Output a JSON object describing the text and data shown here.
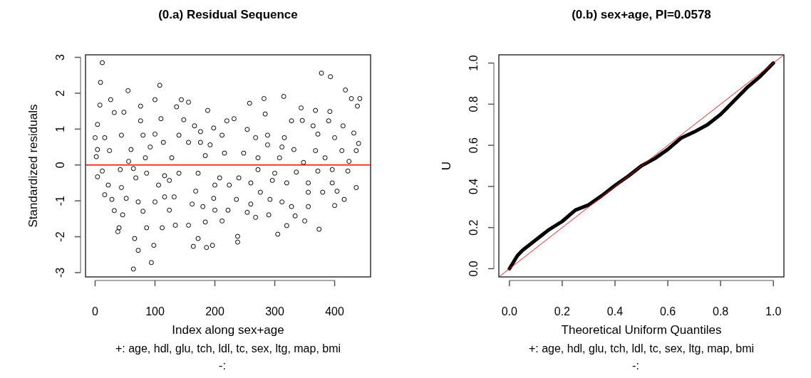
{
  "chart_data": [
    {
      "type": "scatter",
      "title": "(0.a) Residual Sequence",
      "xlabel": "Index along sex+age",
      "ylabel": "Standardized residuals",
      "marker": "circle",
      "xlim": [
        -16,
        460
      ],
      "ylim": [
        -3.12,
        3.07
      ],
      "xticks": [
        0,
        100,
        200,
        300,
        400
      ],
      "yticks": [
        -3,
        -2,
        -1,
        0,
        1,
        2,
        3
      ],
      "ref_lines": [
        {
          "axis": "y",
          "value": 0,
          "color": "#ff0000"
        }
      ],
      "annotations": [
        "+:  age, hdl, glu, tch, ldl, tc, sex, ltg, map, bmi",
        "-:"
      ],
      "series": [
        {
          "color": "#000000",
          "x": [
            12,
            9,
            55,
            108,
            378,
            393,
            418,
            282,
            315,
            428,
            442,
            438,
            8,
            26,
            32,
            48,
            76,
            100,
            136,
            144,
            156,
            188,
            258,
            344,
            368,
            392,
            284,
            4,
            76,
            110,
            148,
            166,
            198,
            220,
            232,
            254,
            328,
            346,
            364,
            390,
            414,
            0,
            16,
            44,
            100,
            80,
            114,
            140,
            176,
            212,
            268,
            288,
            316,
            372,
            400,
            432,
            4,
            24,
            60,
            92,
            156,
            176,
            192,
            288,
            312,
            332,
            368,
            412,
            440,
            2,
            56,
            84,
            128,
            184,
            216,
            248,
            272,
            308,
            348,
            384,
            424,
            436,
            12,
            42,
            64,
            86,
            116,
            140,
            172,
            208,
            240,
            272,
            300,
            336,
            372,
            396,
            422,
            4,
            22,
            44,
            68,
            106,
            124,
            200,
            224,
            260,
            296,
            320,
            356,
            396,
            436,
            16,
            52,
            72,
            100,
            116,
            168,
            198,
            236,
            276,
            292,
            312,
            356,
            380,
            404,
            416,
            28,
            80,
            132,
            162,
            180,
            200,
            222,
            260,
            328,
            356,
            400,
            32,
            46,
            124,
            254,
            268,
            290,
            350,
            334,
            40,
            86,
            112,
            134,
            156,
            184,
            212,
            320,
            374,
            305,
            38,
            66,
            172,
            238,
            238,
            72,
            98,
            164,
            186,
            196,
            94,
            64
          ],
          "values": [
            2.85,
            2.3,
            2.07,
            2.22,
            2.56,
            2.46,
            2.09,
            1.85,
            1.91,
            1.85,
            1.85,
            1.64,
            1.67,
            1.82,
            1.46,
            1.47,
            1.64,
            1.82,
            1.62,
            1.82,
            1.75,
            1.52,
            1.72,
            1.59,
            1.52,
            1.49,
            1.42,
            1.13,
            1.23,
            1.29,
            1.26,
            1.09,
            1.03,
            1.23,
            1.29,
            0.99,
            1.23,
            1.24,
            1.09,
            1.23,
            1.09,
            0.76,
            0.76,
            0.83,
            0.86,
            0.83,
            0.63,
            0.83,
            0.93,
            0.83,
            0.76,
            0.83,
            0.76,
            0.86,
            0.76,
            0.89,
            0.43,
            0.4,
            0.43,
            0.5,
            0.63,
            0.63,
            0.56,
            0.56,
            0.5,
            0.43,
            0.4,
            0.4,
            0.6,
            0.23,
            0.1,
            0.2,
            0.2,
            0.26,
            0.33,
            0.33,
            0.2,
            0.2,
            0.07,
            0.2,
            0.1,
            0.4,
            -0.17,
            -0.13,
            -0.1,
            -0.23,
            -0.3,
            -0.23,
            -0.23,
            -0.36,
            -0.36,
            -0.13,
            -0.23,
            -0.2,
            -0.17,
            -0.13,
            -0.17,
            -0.33,
            -0.56,
            -0.63,
            -0.36,
            -0.56,
            -0.43,
            -0.56,
            -0.56,
            -0.5,
            -0.43,
            -0.5,
            -0.5,
            -0.5,
            -0.63,
            -0.83,
            -0.93,
            -1.03,
            -1.03,
            -0.89,
            -0.73,
            -0.93,
            -0.96,
            -0.76,
            -0.96,
            -1.03,
            -0.76,
            -0.76,
            -0.73,
            -0.96,
            -0.96,
            -1.29,
            -0.89,
            -1.09,
            -1.16,
            -1.26,
            -1.26,
            -1.09,
            -1.16,
            -1.16,
            -1.13,
            -1.27,
            -1.39,
            -1.26,
            -1.32,
            -1.46,
            -1.39,
            -1.56,
            -1.42,
            -1.75,
            -1.75,
            -1.75,
            -1.68,
            -1.68,
            -1.59,
            -1.56,
            -1.69,
            -1.79,
            -1.93,
            -1.86,
            -2.05,
            -2.05,
            -1.99,
            -2.15,
            -2.38,
            -2.24,
            -2.27,
            -2.3,
            -2.24,
            -2.72,
            -2.9
          ]
        }
      ]
    },
    {
      "type": "line",
      "title": "(0.b) sex+age, PI=0.0578",
      "xlabel": "Theoretical Uniform Quantiles",
      "ylabel": "U",
      "xlim": [
        -0.04,
        1.04
      ],
      "ylim": [
        -0.04,
        1.04
      ],
      "xticks": [
        {
          "value": 0,
          "label": "0.0"
        },
        {
          "value": 0.2,
          "label": "0.2"
        },
        {
          "value": 0.4,
          "label": "0.4"
        },
        {
          "value": 0.6,
          "label": "0.6"
        },
        {
          "value": 0.8,
          "label": "0.8"
        },
        {
          "value": 1,
          "label": "1.0"
        }
      ],
      "yticks": [
        {
          "value": 0,
          "label": "0.0"
        },
        {
          "value": 0.2,
          "label": "0.2"
        },
        {
          "value": 0.4,
          "label": "0.4"
        },
        {
          "value": 0.6,
          "label": "0.6"
        },
        {
          "value": 0.8,
          "label": "0.8"
        },
        {
          "value": 1,
          "label": "1.0"
        }
      ],
      "annotations": [
        "+:  age, hdl, glu, tch, ldl, tc, sex, ltg, map, bmi",
        "-:"
      ],
      "series": [
        {
          "color": "#000000",
          "x": [
            0,
            0.03,
            0.05,
            0.1,
            0.15,
            0.2,
            0.25,
            0.3,
            0.35,
            0.4,
            0.45,
            0.5,
            0.55,
            0.6,
            0.65,
            0.7,
            0.75,
            0.8,
            0.85,
            0.9,
            0.95,
            1.0
          ],
          "values": [
            0,
            0.063,
            0.09,
            0.14,
            0.19,
            0.23,
            0.285,
            0.31,
            0.355,
            0.405,
            0.45,
            0.5,
            0.535,
            0.58,
            0.635,
            0.665,
            0.7,
            0.75,
            0.815,
            0.88,
            0.935,
            1.0
          ]
        },
        {
          "color": "#ff0000",
          "x": [
            -0.04,
            1.04
          ],
          "values": [
            -0.04,
            1.04
          ]
        }
      ]
    }
  ]
}
